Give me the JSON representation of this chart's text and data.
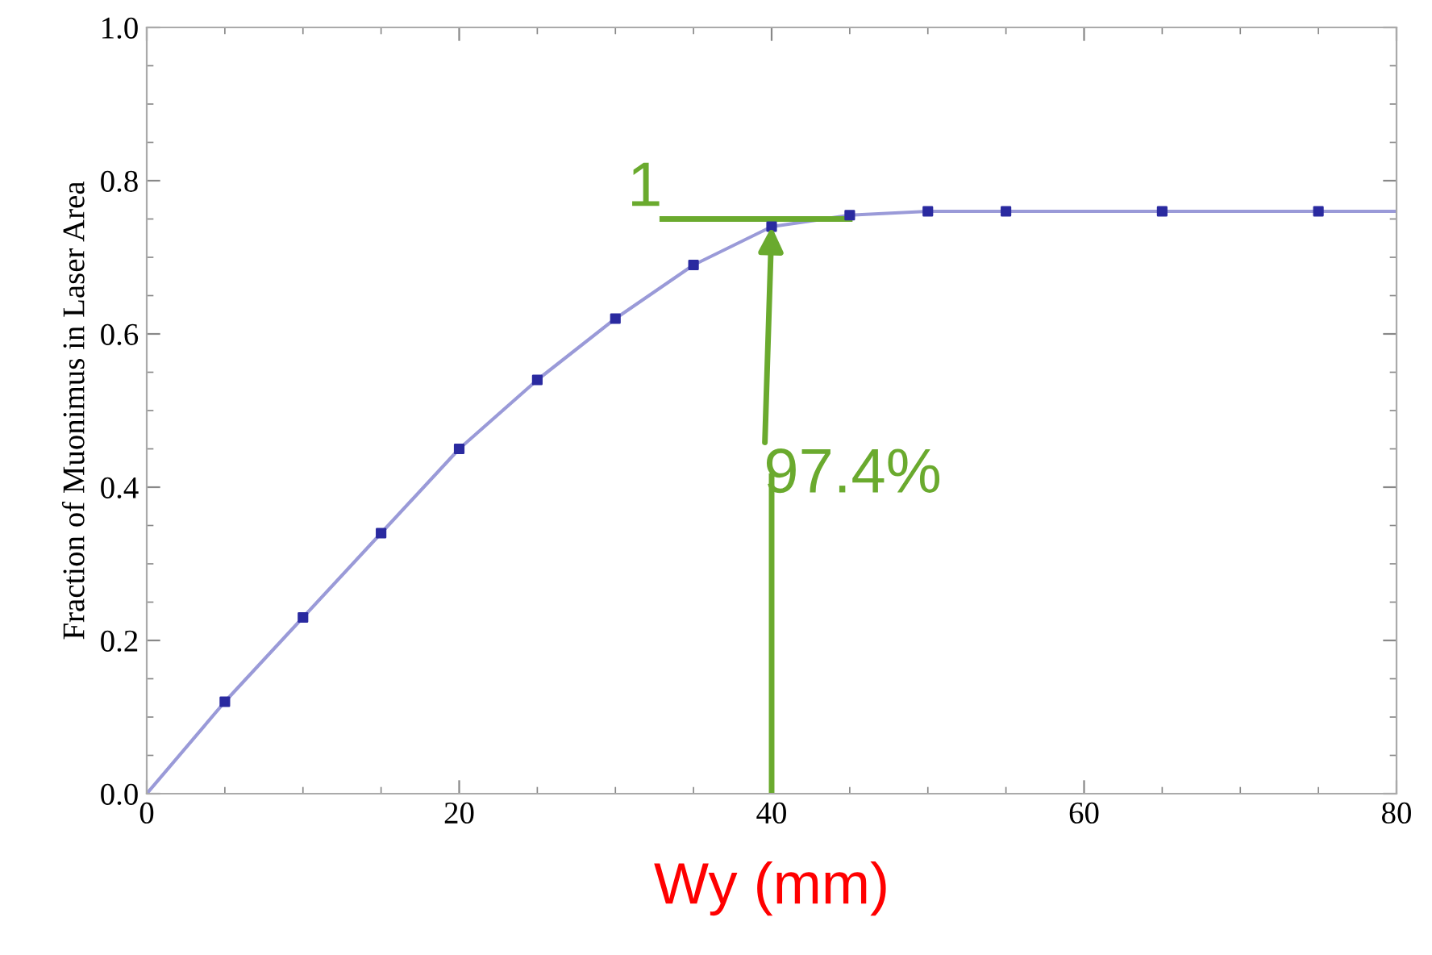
{
  "chart_data": {
    "type": "line",
    "xlabel": "Wy (mm)",
    "ylabel": "Fraction of Muonimus in Laser Area",
    "xlim": [
      0,
      80
    ],
    "ylim": [
      0,
      1.0
    ],
    "xticks": [
      0,
      20,
      40,
      60,
      80
    ],
    "yticks": [
      {
        "value": 0,
        "label": "0.0"
      },
      0.2,
      0.4,
      0.6,
      0.8,
      {
        "value": 1.0,
        "label": "1.0"
      }
    ],
    "grid": false,
    "legend": false,
    "series": [
      {
        "type": "line",
        "color": "#9a9ad8",
        "marker": "none",
        "x": [
          0,
          5,
          10,
          15,
          20,
          25,
          30,
          35,
          40,
          45,
          50,
          55,
          65,
          75,
          80
        ],
        "values": [
          0,
          0.12,
          0.23,
          0.34,
          0.45,
          0.54,
          0.62,
          0.69,
          0.74,
          0.755,
          0.76,
          0.76,
          0.76,
          0.76,
          0.76
        ]
      },
      {
        "type": "scatter",
        "color": "#2a2aa0",
        "marker": "square",
        "x": [
          5,
          10,
          15,
          20,
          25,
          30,
          35,
          40,
          45,
          50,
          55,
          65,
          75
        ],
        "values": [
          0.12,
          0.23,
          0.34,
          0.45,
          0.54,
          0.62,
          0.69,
          0.74,
          0.755,
          0.76,
          0.76,
          0.76,
          0.76
        ]
      }
    ],
    "annotations": [
      {
        "text": "1",
        "x": 45,
        "y": 0.75
      },
      {
        "text": "97.4%",
        "x": 40,
        "y": 0.74
      }
    ]
  }
}
